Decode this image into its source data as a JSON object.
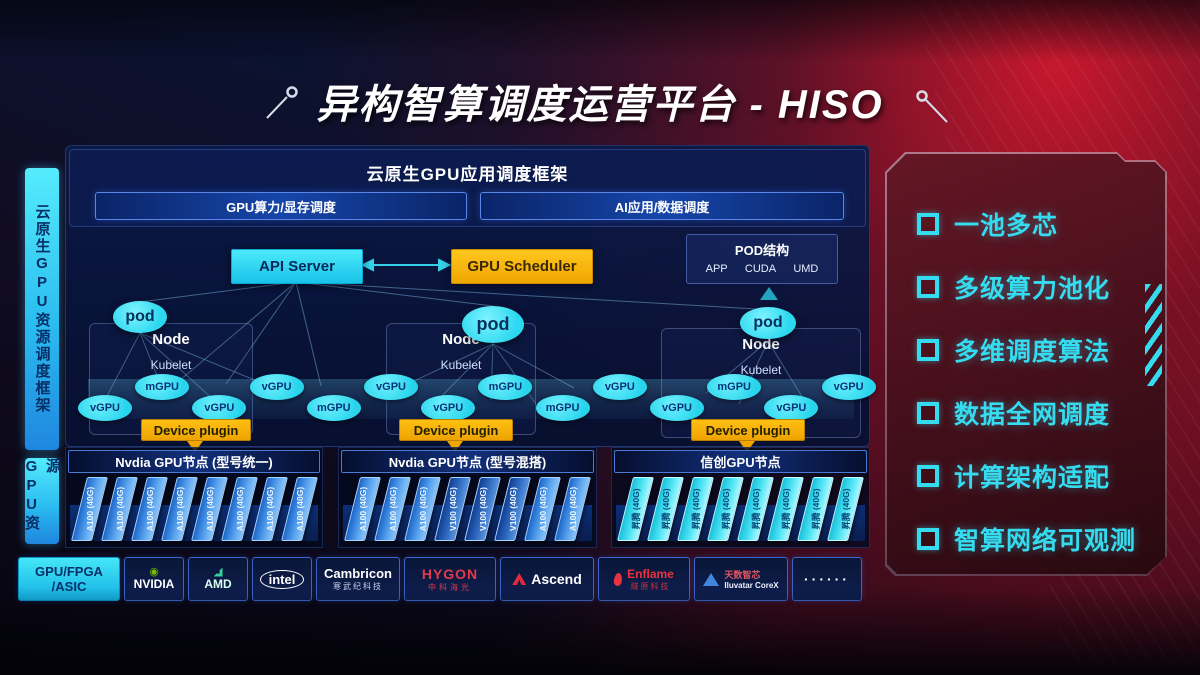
{
  "page": {
    "title": "异构智算调度运营平台 - HISO"
  },
  "sidebar": {
    "framework_label": "云原生GPU资源调度框架",
    "resource_label": "GPU资源"
  },
  "framework": {
    "title": "云原生GPU应用调度框架",
    "modules": [
      "GPU算力/显存调度",
      "AI应用/数据调度"
    ]
  },
  "control": {
    "api_server": "API Server",
    "gpu_scheduler": "GPU Scheduler"
  },
  "pod_struct": {
    "title": "POD结构",
    "layers": [
      "APP",
      "CUDA",
      "UMD"
    ]
  },
  "nodes": [
    {
      "name": "Node",
      "agent": "Kubelet",
      "pod": "pod",
      "plugin": "Device plugin"
    },
    {
      "name": "Node",
      "agent": "Kubelet",
      "pod": "pod",
      "plugin": "Device plugin"
    },
    {
      "name": "Node",
      "agent": "Kubelet",
      "pod": "pod",
      "plugin": "Device plugin"
    }
  ],
  "gpu_band": {
    "labels": [
      "vGPU",
      "mGPU",
      "vGPU",
      "vGPU",
      "mGPU",
      "vGPU",
      "vGPU",
      "mGPU",
      "mGPU",
      "vGPU",
      "vGPU",
      "mGPU",
      "vGPU",
      "vGPU"
    ]
  },
  "gpu_groups": [
    {
      "title": "Nvdia GPU节点 (型号统一)",
      "style": "blue",
      "cards": [
        "A100 (40G)",
        "A100 (40G)",
        "A100 (40G)",
        "A100 (40G)",
        "A100 (40G)",
        "A100 (40G)",
        "A100 (40G)",
        "A100 (40G)"
      ]
    },
    {
      "title": "Nvdia GPU节点 (型号混搭)",
      "style": "blue",
      "cards": [
        "A100 (40G)",
        "A100 (40G)",
        "A100 (40G)",
        "V100 (40G)",
        "V100 (40G)",
        "V100 (40G)",
        "A100 (40G)",
        "A100 (40G)"
      ]
    },
    {
      "title": "信创GPU节点",
      "style": "cyan",
      "cards": [
        "昇腾 (40G)",
        "昇腾 (40G)",
        "昇腾 (40G)",
        "昇腾 (40G)",
        "昇腾 (40G)",
        "昇腾 (40G)",
        "昇腾 (40G)",
        "昇腾 (40G)"
      ]
    }
  ],
  "vendors": {
    "chip": {
      "line1": "GPU/FPGA",
      "line2": "/ASIC"
    },
    "nvidia": {
      "name": "NVIDIA"
    },
    "amd": {
      "name": "AMD"
    },
    "intel": {
      "name": "intel"
    },
    "cambricon": {
      "name": "Cambricon",
      "sub": "寒武纪科技"
    },
    "hygon": {
      "name": "HYGON",
      "sub": "中科海光"
    },
    "ascend": {
      "name": "Ascend"
    },
    "enflame": {
      "name": "Enflame",
      "sub": "燧原科技"
    },
    "iluvatar": {
      "name": "天数智芯",
      "sub": "Iluvatar CoreX"
    },
    "more": {
      "name": "······"
    }
  },
  "features": [
    "一池多芯",
    "多级算力池化",
    "多维调度算法",
    "数据全网调度",
    "计算架构适配",
    "智算网络可观测"
  ],
  "colors": {
    "cyan": "#35e2f4",
    "orange": "#f5ae00",
    "navy": "#0a1c4e",
    "red": "#a01325",
    "card_blue": "#2e7fe0",
    "nvidia_green": "#76b900"
  }
}
